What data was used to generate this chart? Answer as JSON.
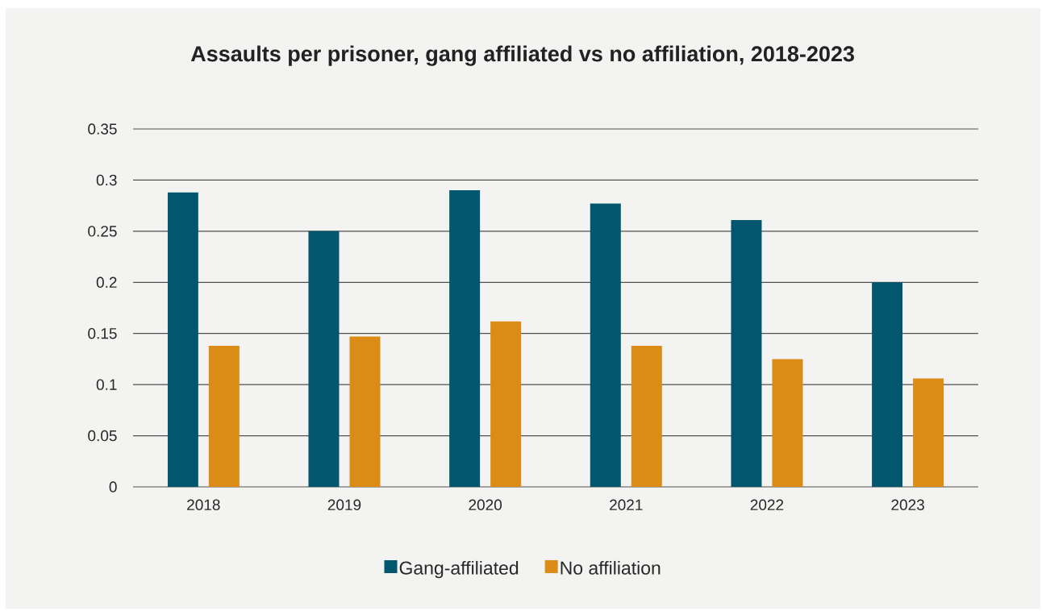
{
  "chart_data": {
    "type": "bar",
    "title": "Assaults per prisoner, gang affiliated vs no affiliation, 2018-2023",
    "categories": [
      "2018",
      "2019",
      "2020",
      "2021",
      "2022",
      "2023"
    ],
    "series": [
      {
        "name": "Gang-affiliated",
        "color": "#02566e",
        "values": [
          0.288,
          0.25,
          0.29,
          0.277,
          0.261,
          0.2
        ]
      },
      {
        "name": "No affiliation",
        "color": "#da8c17",
        "values": [
          0.138,
          0.147,
          0.162,
          0.138,
          0.125,
          0.106
        ]
      }
    ],
    "ylim": [
      0,
      0.35
    ],
    "yticks": [
      0,
      0.05,
      0.1,
      0.15,
      0.2,
      0.25,
      0.3,
      0.35
    ],
    "grid": "y",
    "legend": "bottom"
  }
}
